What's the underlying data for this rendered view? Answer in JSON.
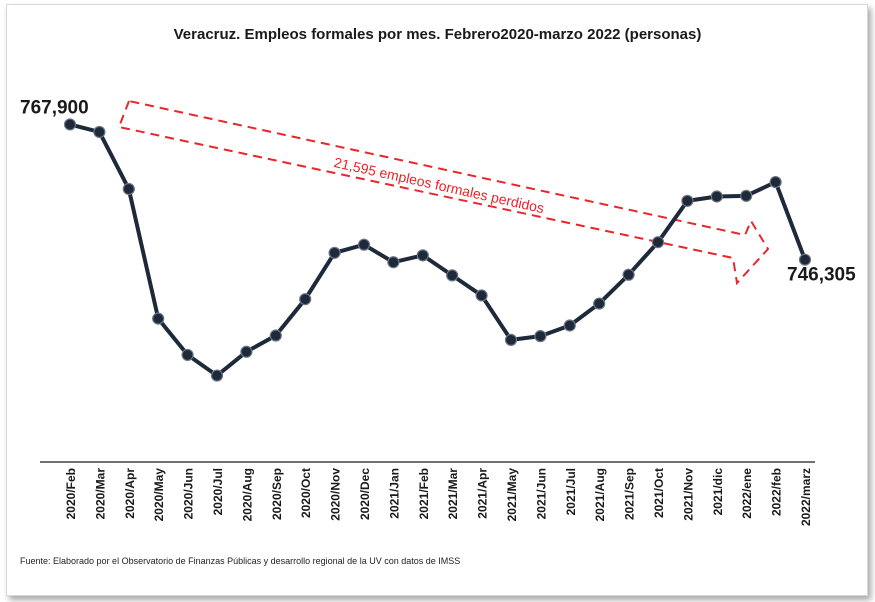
{
  "chart_data": {
    "type": "line",
    "title": "Veracruz. Empleos formales por mes. Febrero2020-marzo 2022 (personas)",
    "categories": [
      "2020/Feb",
      "2020/Mar",
      "2020/Apr",
      "2020/May",
      "2020/Jun",
      "2020/Jul",
      "2020/Aug",
      "2020/Sep",
      "2020/Oct",
      "2020/Nov",
      "2020/Dec",
      "2021/Jan",
      "2021/Feb",
      "2021/Mar",
      "2021/Apr",
      "2021/May",
      "2021/Jun",
      "2021/Jul",
      "2021/Aug",
      "2021/Sep",
      "2021/Oct",
      "2021/Nov",
      "2021/dic",
      "2022/ene",
      "2022/feb",
      "2022/marz"
    ],
    "values": [
      767900,
      766700,
      757600,
      736900,
      731100,
      727800,
      731600,
      734200,
      740000,
      747400,
      748700,
      745900,
      747000,
      743800,
      740600,
      733500,
      734100,
      735800,
      739300,
      743900,
      749100,
      755700,
      756400,
      756500,
      758700,
      746305
    ],
    "ylim": [
      714000,
      775000
    ],
    "data_labels": [
      {
        "index": 0,
        "text": "767,900"
      },
      {
        "index": 25,
        "text": "746,305"
      }
    ],
    "annotation": {
      "text": "21,595 empleos formales perdidos",
      "color": "#e8262b"
    },
    "line_color": "#1e2a3a",
    "grid": false
  },
  "source": "Fuente: Elaborado por el Observatorio de Finanzas Públicas y desarrollo regional de la UV con datos de IMSS"
}
